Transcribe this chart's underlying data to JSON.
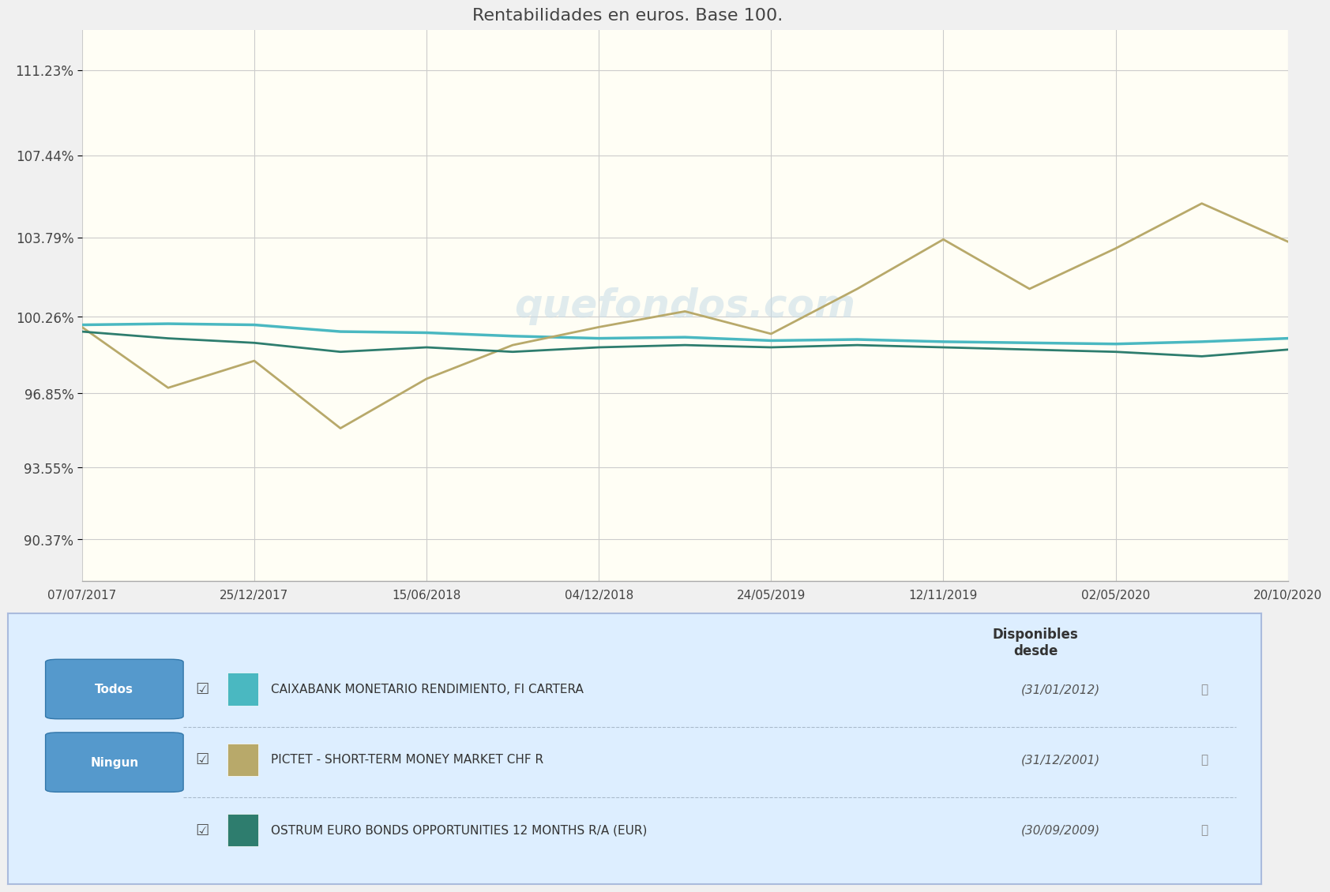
{
  "title": "Rentabilidades en euros. Base 100.",
  "background_chart": "#fffef5",
  "background_fig": "#f0f0f0",
  "grid_color": "#cccccc",
  "yticks": [
    90.37,
    93.55,
    96.85,
    100.26,
    103.79,
    107.44,
    111.23
  ],
  "ytick_labels": [
    "90.37%",
    "93.55%",
    "96.85%",
    "100.26%",
    "103.79%",
    "107.44%",
    "111.23%"
  ],
  "xtick_labels": [
    "07/07/2017",
    "25/12/2017",
    "15/06/2018",
    "04/12/2018",
    "24/05/2019",
    "12/11/2019",
    "02/05/2020",
    "20/10/2020"
  ],
  "xlim": [
    0,
    7
  ],
  "ylim": [
    88.5,
    113.0
  ],
  "watermark": "quefondos.com",
  "line1_color": "#4ab8c1",
  "line2_color": "#b8a96a",
  "line3_color": "#2e7d6e",
  "line1_x": [
    0,
    0.5,
    1.0,
    1.5,
    2.0,
    2.5,
    3.0,
    3.5,
    4.0,
    4.5,
    5.0,
    5.5,
    6.0,
    6.5,
    7.0
  ],
  "line1_y": [
    99.9,
    99.95,
    99.9,
    99.6,
    99.55,
    99.4,
    99.3,
    99.35,
    99.2,
    99.25,
    99.15,
    99.1,
    99.05,
    99.15,
    99.3
  ],
  "line2_x": [
    0,
    0.5,
    1.0,
    1.5,
    2.0,
    2.5,
    3.0,
    3.5,
    4.0,
    4.5,
    5.0,
    5.5,
    6.0,
    6.5,
    7.0
  ],
  "line2_y": [
    99.8,
    97.1,
    98.3,
    95.3,
    97.5,
    99.0,
    99.8,
    100.5,
    99.5,
    101.5,
    103.7,
    101.5,
    103.3,
    105.3,
    103.6
  ],
  "line3_x": [
    0,
    0.5,
    1.0,
    1.5,
    2.0,
    2.5,
    3.0,
    3.5,
    4.0,
    4.5,
    5.0,
    5.5,
    6.0,
    6.5,
    7.0
  ],
  "line3_y": [
    99.6,
    99.3,
    99.1,
    98.7,
    98.9,
    98.7,
    98.9,
    99.0,
    98.9,
    99.0,
    98.9,
    98.8,
    98.7,
    98.5,
    98.8
  ],
  "legend_bg": "#ddeeff",
  "legend_border": "#aabbcc",
  "legend_items": [
    {
      "label": "CAIXABANK MONETARIO RENDIMIENTO, FI CARTERA",
      "since": "(31/01/2012)",
      "color": "#4ab8c1"
    },
    {
      "label": "PICTET - SHORT-TERM MONEY MARKET CHF R",
      "since": "(31/12/2001)",
      "color": "#b8a96a"
    },
    {
      "label": "OSTRUM EURO BONDS OPPORTUNITIES 12 MONTHS R/A (EUR)",
      "since": "(30/09/2009)",
      "color": "#2e7d6e"
    }
  ],
  "btn_todos_color": "#5599cc",
  "btn_ningun_color": "#5599cc",
  "disponibles_desde_label": "Disponibles\ndesde"
}
